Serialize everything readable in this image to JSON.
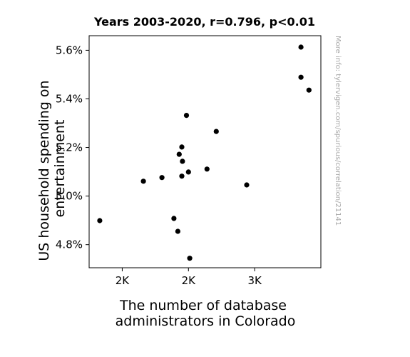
{
  "chart_data": {
    "type": "scatter",
    "title": "Years 2003-2020, r=0.796, p<0.01",
    "xlabel": [
      "The number of database",
      "administrators in Colorado"
    ],
    "ylabel": [
      "US household spending on",
      "entertainment"
    ],
    "xlim": [
      1500,
      3250
    ],
    "ylim": [
      4.705,
      5.66
    ],
    "xticks": [
      {
        "value": 1750,
        "label": "2K"
      },
      {
        "value": 2250,
        "label": "2K"
      },
      {
        "value": 2750,
        "label": "3K"
      }
    ],
    "yticks": [
      {
        "value": 4.8,
        "label": "4.8%"
      },
      {
        "value": 5.0,
        "label": "5.0%"
      },
      {
        "value": 5.2,
        "label": "5.2%"
      },
      {
        "value": 5.4,
        "label": "5.4%"
      },
      {
        "value": 5.6,
        "label": "5.6%"
      }
    ],
    "points": [
      {
        "x": 1580,
        "y": 4.899
      },
      {
        "x": 1910,
        "y": 5.061
      },
      {
        "x": 2050,
        "y": 5.076
      },
      {
        "x": 2260,
        "y": 4.744
      },
      {
        "x": 2140,
        "y": 4.908
      },
      {
        "x": 2170,
        "y": 4.855
      },
      {
        "x": 2180,
        "y": 5.172
      },
      {
        "x": 2200,
        "y": 5.202
      },
      {
        "x": 2200,
        "y": 5.082
      },
      {
        "x": 2205,
        "y": 5.143
      },
      {
        "x": 2235,
        "y": 5.332
      },
      {
        "x": 2250,
        "y": 5.099
      },
      {
        "x": 2390,
        "y": 5.111
      },
      {
        "x": 2460,
        "y": 5.266
      },
      {
        "x": 2690,
        "y": 5.046
      },
      {
        "x": 3100,
        "y": 5.489
      },
      {
        "x": 3100,
        "y": 5.613
      },
      {
        "x": 3160,
        "y": 5.436
      }
    ],
    "grid": false,
    "marker_color": "#000000"
  },
  "watermark": "More info: tylervigen.com/spurious/correlation/21141"
}
